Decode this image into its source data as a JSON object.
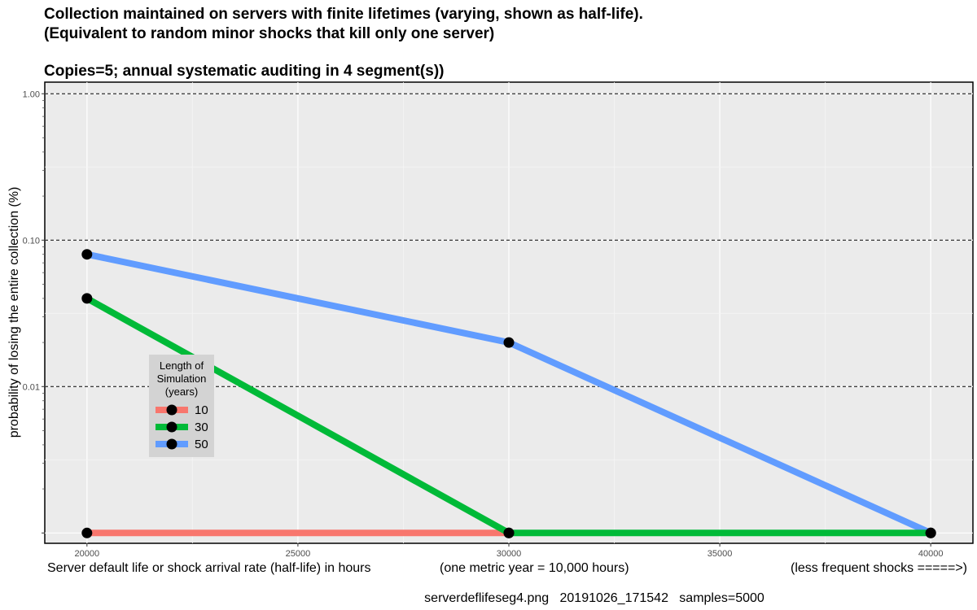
{
  "chart_data": {
    "type": "line",
    "title_lines": [
      "Collection maintained on servers with finite lifetimes (varying, shown as half-life).",
      "(Equivalent to random minor shocks that kill only one server)"
    ],
    "subtitle": "Copies=5; annual systematic auditing in 4 segment(s))",
    "ylabel": "probability of losing the entire collection (%)",
    "xlabel_parts": [
      "Server default life or shock arrival rate (half-life) in hours",
      "(one metric year = 10,000 hours)",
      "(less frequent shocks =====>)"
    ],
    "caption": "serverdeflifeseg4.png   20191026_171542   samples=5000",
    "x_ticks": [
      20000,
      25000,
      30000,
      35000,
      40000
    ],
    "x_tick_labels": [
      "20000",
      "25000",
      "30000",
      "35000",
      "40000"
    ],
    "xlim": [
      19000,
      41000
    ],
    "y_scale": "log10",
    "y_ticks": [
      0.01,
      0.1,
      1.0
    ],
    "y_tick_labels": [
      "0.01",
      "0.10",
      "1.00"
    ],
    "y_floor_value": 0.001,
    "ylim": [
      0.00085,
      1.2
    ],
    "hlines_dashed": [
      0.01,
      0.1,
      1.0
    ],
    "legend_title": [
      "Length of",
      "Simulation",
      "(years)"
    ],
    "legend_position": "inside-left",
    "grid": true,
    "series": [
      {
        "name": "10",
        "color": "#f8766d",
        "x": [
          20000,
          30000
        ],
        "y": [
          0.001,
          0.001
        ]
      },
      {
        "name": "30",
        "color": "#00ba38",
        "x": [
          20000,
          30000,
          40000
        ],
        "y": [
          0.04,
          0.001,
          0.001
        ]
      },
      {
        "name": "50",
        "color": "#619cff",
        "x": [
          20000,
          30000,
          40000
        ],
        "y": [
          0.08,
          0.02,
          0.001
        ]
      }
    ]
  }
}
